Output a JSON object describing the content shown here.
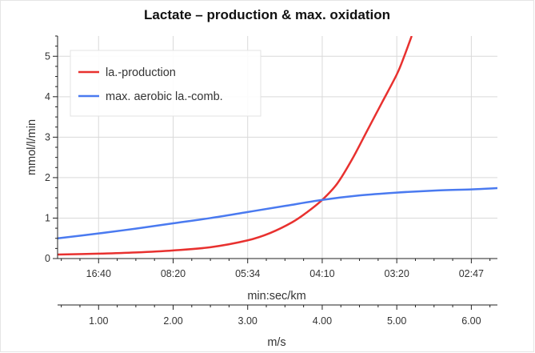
{
  "chart_data": {
    "type": "line",
    "title": "Lactate – production & max. oxidation",
    "ylabel": "mmol/l/min",
    "xlabel_top": "min:sec/km",
    "xlabel_bottom": "m/s",
    "xlim": [
      0.45,
      6.35
    ],
    "ylim": [
      0,
      5.5
    ],
    "grid": true,
    "legend_position": "top-left",
    "y_ticks": [
      0,
      1,
      2,
      3,
      4,
      5
    ],
    "x_pace_ticks": [
      {
        "x": 1.0,
        "label": "16:40"
      },
      {
        "x": 2.0,
        "label": "08:20"
      },
      {
        "x": 3.0,
        "label": "05:34"
      },
      {
        "x": 4.0,
        "label": "04:10"
      },
      {
        "x": 5.0,
        "label": "03:20"
      },
      {
        "x": 6.0,
        "label": "02:47"
      }
    ],
    "x_speed_ticks": [
      {
        "x": 1.0,
        "label": "1.00"
      },
      {
        "x": 2.0,
        "label": "2.00"
      },
      {
        "x": 3.0,
        "label": "3.00"
      },
      {
        "x": 4.0,
        "label": "4.00"
      },
      {
        "x": 5.0,
        "label": "5.00"
      },
      {
        "x": 6.0,
        "label": "6.00"
      }
    ],
    "series": [
      {
        "name": "la.-production",
        "color": "#e8312f",
        "x": [
          0.45,
          1.0,
          1.5,
          2.0,
          2.5,
          3.0,
          3.3,
          3.6,
          3.8,
          4.0,
          4.2,
          4.4,
          4.6,
          4.8,
          5.0,
          5.1,
          5.2
        ],
        "y": [
          0.1,
          0.12,
          0.15,
          0.2,
          0.28,
          0.45,
          0.63,
          0.9,
          1.15,
          1.45,
          1.85,
          2.45,
          3.15,
          3.85,
          4.55,
          5.0,
          5.5
        ]
      },
      {
        "name": "max. aerobic la.-comb.",
        "color": "#4a7af0",
        "x": [
          0.45,
          1.0,
          1.5,
          2.0,
          2.5,
          3.0,
          3.5,
          4.0,
          4.5,
          5.0,
          5.5,
          6.0,
          6.35
        ],
        "y": [
          0.5,
          0.62,
          0.74,
          0.87,
          1.0,
          1.15,
          1.3,
          1.45,
          1.56,
          1.63,
          1.68,
          1.71,
          1.74
        ]
      }
    ]
  }
}
